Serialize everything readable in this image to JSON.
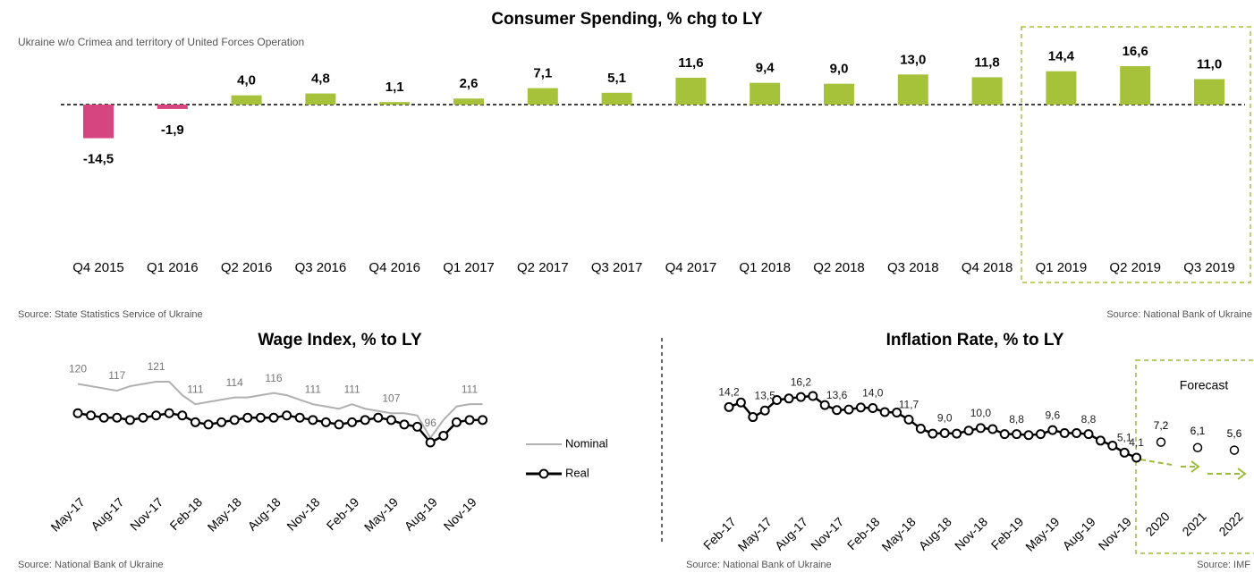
{
  "chart_data": [
    {
      "type": "bar",
      "title": "Consumer Spending, % chg to LY",
      "subtitle": "Ukraine w/o Crimea and territory of United Forces Operation",
      "categories": [
        "Q4 2015",
        "Q1 2016",
        "Q2 2016",
        "Q3 2016",
        "Q4 2016",
        "Q1 2017",
        "Q2 2017",
        "Q3 2017",
        "Q4 2017",
        "Q1 2018",
        "Q2 2018",
        "Q3 2018",
        "Q4 2018",
        "Q1 2019",
        "Q2 2019",
        "Q3 2019"
      ],
      "values": [
        -14.5,
        -1.9,
        4.0,
        4.8,
        1.1,
        2.6,
        7.1,
        5.1,
        11.6,
        9.4,
        9.0,
        13.0,
        11.8,
        14.4,
        16.6,
        11.0
      ],
      "value_labels": [
        "-14,5",
        "-1,9",
        "4,0",
        "4,8",
        "1,1",
        "2,6",
        "7,1",
        "5,1",
        "11,6",
        "9,4",
        "9,0",
        "13,0",
        "11,8",
        "14,4",
        "16,6",
        "11,0"
      ],
      "positive_color": "#a6c23a",
      "negative_color": "#d6457f",
      "sources": [
        "Source: State Statistics Service of Ukraine",
        "Source: National Bank of Ukraine"
      ]
    },
    {
      "type": "line",
      "title": "Wage Index, % to LY",
      "categories": [
        "May-17",
        null,
        null,
        "Aug-17",
        null,
        null,
        "Nov-17",
        null,
        null,
        "Feb-18",
        null,
        null,
        "May-18",
        null,
        null,
        "Aug-18",
        null,
        null,
        "Nov-18",
        null,
        null,
        "Feb-19",
        null,
        null,
        "May-19",
        null,
        null,
        "Aug-19",
        null,
        null,
        "Nov-19",
        null
      ],
      "series": [
        {
          "name": "Nominal",
          "color": "#b0b0b0",
          "markers": false,
          "values": [
            120,
            119,
            118,
            117,
            119,
            120,
            121,
            121,
            115,
            111,
            112,
            113,
            114,
            114,
            115,
            116,
            115,
            113,
            111,
            110,
            109,
            111,
            109,
            108,
            107,
            107,
            106,
            96,
            104,
            110,
            111,
            111
          ],
          "value_labels": [
            "120",
            null,
            null,
            "117",
            null,
            null,
            "121",
            null,
            null,
            "111",
            null,
            null,
            "114",
            null,
            null,
            "116",
            null,
            null,
            "111",
            null,
            null,
            "111",
            null,
            null,
            "107",
            null,
            null,
            "96",
            null,
            null,
            "111",
            null
          ]
        },
        {
          "name": "Real",
          "color": "#000000",
          "markers": true,
          "values": [
            107,
            106,
            105,
            105,
            104,
            105,
            106,
            107,
            106,
            103,
            102,
            103,
            104,
            105,
            105,
            105,
            106,
            105,
            104,
            103,
            102,
            103,
            104,
            105,
            104,
            102,
            101,
            94,
            97,
            103,
            104,
            104
          ]
        }
      ],
      "source": "Source: National Bank of Ukraine"
    },
    {
      "type": "line",
      "title": "Inflation Rate, % to LY",
      "categories": [
        "Feb-17",
        null,
        null,
        "May-17",
        null,
        null,
        "Aug-17",
        null,
        null,
        "Nov-17",
        null,
        null,
        "Feb-18",
        null,
        null,
        "May-18",
        null,
        null,
        "Aug-18",
        null,
        null,
        "Nov-18",
        null,
        null,
        "Feb-19",
        null,
        null,
        "May-19",
        null,
        null,
        "Aug-19",
        null,
        null,
        "Nov-19",
        null
      ],
      "series": [
        {
          "color": "#000000",
          "markers": true,
          "values": [
            14.2,
            15.1,
            12.2,
            13.5,
            15.6,
            15.9,
            16.2,
            16.4,
            14.6,
            13.6,
            13.7,
            14.1,
            14.0,
            13.2,
            13.1,
            11.7,
            9.9,
            8.9,
            9.0,
            8.9,
            9.5,
            10.0,
            9.8,
            8.8,
            8.8,
            8.6,
            8.8,
            9.6,
            9.0,
            9.0,
            8.8,
            7.5,
            6.5,
            5.1,
            4.1
          ],
          "value_labels": [
            "14,2",
            null,
            null,
            "13,5",
            null,
            null,
            "16,2",
            null,
            null,
            "13,6",
            null,
            null,
            "14,0",
            null,
            null,
            "11,7",
            null,
            null,
            "9,0",
            null,
            null,
            "10,0",
            null,
            null,
            "8,8",
            null,
            null,
            "9,6",
            null,
            null,
            "8,8",
            null,
            null,
            "5,1",
            "4,1"
          ]
        }
      ],
      "forecast": {
        "label": "Forecast",
        "categories": [
          "2020",
          "2021",
          "2022"
        ],
        "values": [
          7.2,
          6.1,
          5.6
        ],
        "value_labels": [
          "7,2",
          "6,1",
          "5,6"
        ],
        "color": "#9bbb3c"
      },
      "sources": [
        "Source: National Bank of Ukraine",
        "Source: IMF"
      ]
    }
  ]
}
